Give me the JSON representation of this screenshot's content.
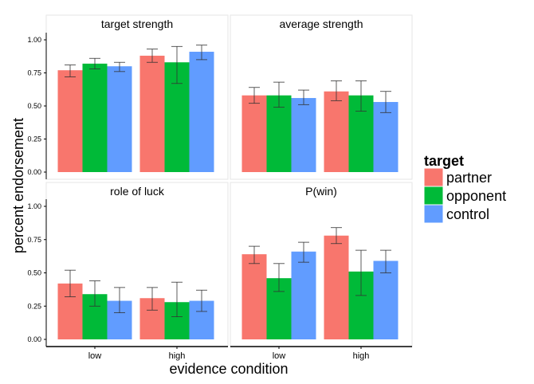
{
  "chart_data": {
    "type": "bar",
    "ylim": [
      0,
      1
    ],
    "yticks": [
      "0.00",
      "0.25",
      "0.50",
      "0.75",
      "1.00"
    ],
    "ytick_values": [
      0,
      0.25,
      0.5,
      0.75,
      1.0
    ],
    "categories": [
      "low",
      "high"
    ],
    "xlabel": "evidence condition",
    "ylabel": "percent endorsement",
    "legend": {
      "title": "target",
      "placement": "right",
      "entries": [
        {
          "name": "partner",
          "color": "#F8766D"
        },
        {
          "name": "opponent",
          "color": "#00BA38"
        },
        {
          "name": "control",
          "color": "#619CFF"
        }
      ]
    },
    "panels": [
      {
        "title": "target strength",
        "series": [
          {
            "name": "partner",
            "values": [
              0.77,
              0.88
            ],
            "lower": [
              0.72,
              0.83
            ],
            "upper": [
              0.81,
              0.93
            ]
          },
          {
            "name": "opponent",
            "values": [
              0.82,
              0.83
            ],
            "lower": [
              0.78,
              0.67
            ],
            "upper": [
              0.86,
              0.95
            ]
          },
          {
            "name": "control",
            "values": [
              0.8,
              0.91
            ],
            "lower": [
              0.76,
              0.85
            ],
            "upper": [
              0.83,
              0.96
            ]
          }
        ]
      },
      {
        "title": "average strength",
        "series": [
          {
            "name": "partner",
            "values": [
              0.58,
              0.61
            ],
            "lower": [
              0.52,
              0.54
            ],
            "upper": [
              0.64,
              0.69
            ]
          },
          {
            "name": "opponent",
            "values": [
              0.58,
              0.58
            ],
            "lower": [
              0.49,
              0.46
            ],
            "upper": [
              0.68,
              0.69
            ]
          },
          {
            "name": "control",
            "values": [
              0.56,
              0.53
            ],
            "lower": [
              0.51,
              0.45
            ],
            "upper": [
              0.62,
              0.61
            ]
          }
        ]
      },
      {
        "title": "role of luck",
        "series": [
          {
            "name": "partner",
            "values": [
              0.42,
              0.31
            ],
            "lower": [
              0.32,
              0.22
            ],
            "upper": [
              0.52,
              0.39
            ]
          },
          {
            "name": "opponent",
            "values": [
              0.34,
              0.28
            ],
            "lower": [
              0.25,
              0.17
            ],
            "upper": [
              0.44,
              0.43
            ]
          },
          {
            "name": "control",
            "values": [
              0.29,
              0.29
            ],
            "lower": [
              0.2,
              0.21
            ],
            "upper": [
              0.39,
              0.37
            ]
          }
        ]
      },
      {
        "title": "P(win)",
        "series": [
          {
            "name": "partner",
            "values": [
              0.64,
              0.78
            ],
            "lower": [
              0.57,
              0.72
            ],
            "upper": [
              0.7,
              0.84
            ]
          },
          {
            "name": "opponent",
            "values": [
              0.46,
              0.51
            ],
            "lower": [
              0.36,
              0.33
            ],
            "upper": [
              0.57,
              0.67
            ]
          },
          {
            "name": "control",
            "values": [
              0.66,
              0.59
            ],
            "lower": [
              0.58,
              0.5
            ],
            "upper": [
              0.73,
              0.67
            ]
          }
        ]
      }
    ]
  }
}
